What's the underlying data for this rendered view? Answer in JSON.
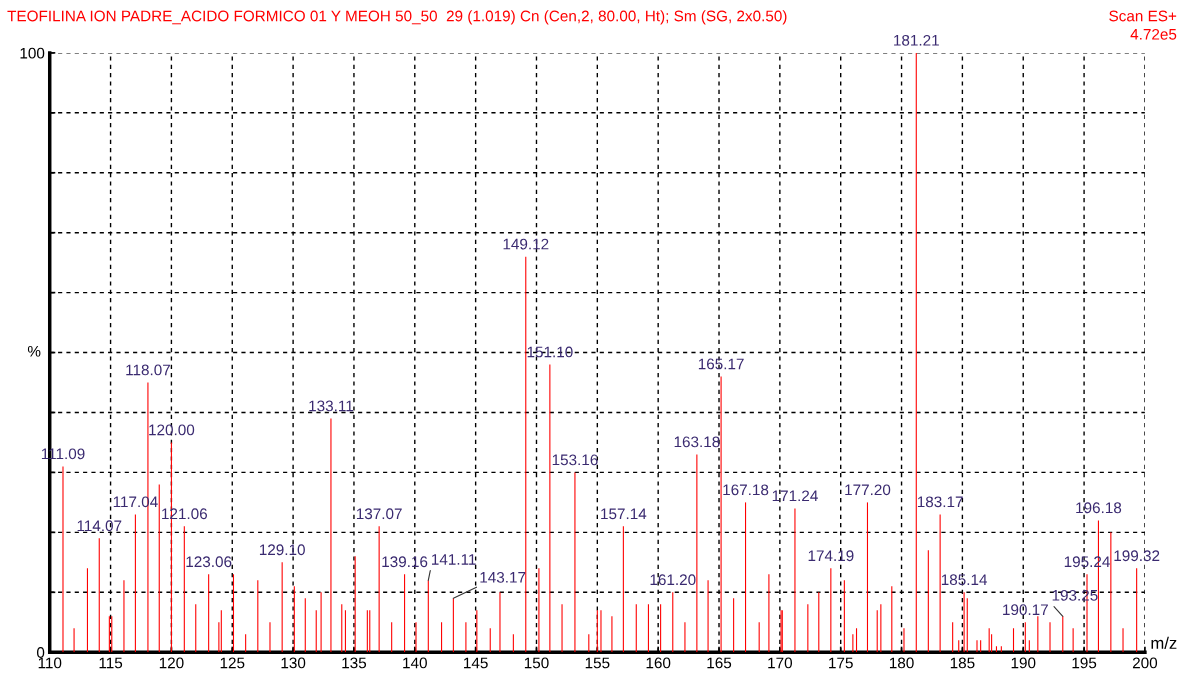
{
  "chart_data": {
    "type": "bar",
    "title": "TEOFILINA ION PADRE_ACIDO FORMICO 01 Y MEOH 50_50  29 (1.019) Cn (Cen,2, 80.00, Ht); Sm (SG, 2x0.50)",
    "xlabel": "m/z",
    "ylabel": "%",
    "x": [
      111.09,
      112.0,
      113.1,
      114.07,
      114.9,
      115.1,
      116.1,
      117.04,
      118.07,
      119.0,
      120.0,
      121.06,
      122.0,
      123.06,
      123.9,
      124.1,
      125.1,
      126.1,
      127.1,
      128.1,
      129.1,
      130.1,
      131.0,
      131.9,
      132.3,
      133.11,
      134.0,
      134.3,
      135.1,
      136.1,
      136.3,
      137.07,
      138.1,
      139.16,
      140.1,
      141.11,
      142.2,
      143.17,
      144.2,
      145.1,
      146.2,
      147.0,
      148.1,
      149.12,
      150.2,
      151.1,
      152.1,
      153.16,
      154.3,
      155.0,
      155.3,
      156.2,
      157.14,
      158.2,
      159.2,
      160.2,
      161.2,
      162.2,
      163.18,
      164.1,
      165.17,
      166.2,
      167.18,
      168.3,
      169.1,
      170.1,
      170.2,
      171.24,
      172.3,
      173.2,
      174.19,
      175.3,
      176.0,
      176.3,
      177.2,
      178.0,
      178.3,
      179.2,
      180.2,
      181.21,
      182.2,
      183.17,
      184.2,
      184.7,
      185.14,
      185.4,
      186.2,
      186.5,
      187.2,
      187.4,
      187.8,
      188.2,
      189.2,
      190.17,
      190.5,
      191.2,
      192.2,
      193.25,
      194.1,
      195.24,
      196.18,
      197.2,
      198.2,
      199.32
    ],
    "series": [
      {
        "color": "#ff0000",
        "values": [
          31,
          4,
          14,
          19,
          6,
          6,
          12,
          23,
          45,
          28,
          35,
          21,
          8,
          13,
          5,
          7,
          13,
          3,
          12,
          5,
          15,
          11,
          9,
          7,
          10,
          39,
          8,
          7,
          16,
          7,
          7,
          21,
          5,
          13,
          5,
          12,
          5,
          9,
          5,
          7,
          4,
          10,
          3,
          66,
          14,
          48,
          8,
          30,
          3,
          7,
          7,
          6,
          21,
          8,
          8,
          8,
          10,
          5,
          33,
          12,
          46,
          9,
          25,
          5,
          13,
          7,
          7,
          24,
          8,
          10,
          14,
          12,
          3,
          4,
          25,
          7,
          8,
          11,
          4,
          100,
          17,
          23,
          5,
          2,
          10,
          9,
          2,
          2,
          4,
          3,
          1,
          1,
          4,
          5,
          2,
          6,
          5,
          6,
          4,
          13,
          22,
          20,
          4,
          14
        ]
      }
    ],
    "xlim": [
      110,
      200
    ],
    "xticks": [
      110,
      115,
      120,
      125,
      130,
      135,
      140,
      145,
      150,
      155,
      160,
      165,
      170,
      175,
      180,
      185,
      190,
      195,
      200
    ],
    "ylim": [
      0,
      100
    ],
    "yticks": [
      0,
      {
        "value": 10,
        "label": null
      },
      {
        "value": 20,
        "label": null
      },
      {
        "value": 30,
        "label": null
      },
      {
        "value": 40,
        "label": null
      },
      {
        "value": 50,
        "label": null
      },
      {
        "value": 60,
        "label": null
      },
      {
        "value": 70,
        "label": null
      },
      {
        "value": 80,
        "label": null
      },
      {
        "value": 90,
        "label": null
      },
      100
    ],
    "grid": true,
    "legend": false,
    "annotations": [
      "Scan ES+",
      "4.72e5",
      {
        "text": "111.09",
        "x": 111.09,
        "y": 31
      },
      {
        "text": "114.07",
        "x": 114.07,
        "y": 19
      },
      {
        "text": "117.04",
        "x": 117.04,
        "y": 23
      },
      {
        "text": "118.07",
        "x": 118.07,
        "y": 45
      },
      {
        "text": "120.00",
        "x": 120.0,
        "y": 35
      },
      {
        "text": "121.06",
        "x": 121.06,
        "y": 21
      },
      {
        "text": "123.06",
        "x": 123.06,
        "y": 13
      },
      {
        "text": "129.10",
        "x": 129.1,
        "y": 15
      },
      {
        "text": "133.11",
        "x": 133.11,
        "y": 39
      },
      {
        "text": "137.07",
        "x": 137.07,
        "y": 21
      },
      {
        "text": "139.16",
        "x": 139.16,
        "y": 13
      },
      {
        "text": "141.11",
        "x": 141.11,
        "y": 12
      },
      {
        "text": "143.17",
        "x": 143.17,
        "y": 9
      },
      {
        "text": "149.12",
        "x": 149.12,
        "y": 66
      },
      {
        "text": "151.10",
        "x": 151.1,
        "y": 48
      },
      {
        "text": "153.16",
        "x": 153.16,
        "y": 30
      },
      {
        "text": "157.14",
        "x": 157.14,
        "y": 21
      },
      {
        "text": "161.20",
        "x": 161.2,
        "y": 10
      },
      {
        "text": "163.18",
        "x": 163.18,
        "y": 33
      },
      {
        "text": "165.17",
        "x": 165.17,
        "y": 46
      },
      {
        "text": "167.18",
        "x": 167.18,
        "y": 25
      },
      {
        "text": "171.24",
        "x": 171.24,
        "y": 24
      },
      {
        "text": "174.19",
        "x": 174.19,
        "y": 14
      },
      {
        "text": "177.20",
        "x": 177.2,
        "y": 25
      },
      {
        "text": "181.21",
        "x": 181.21,
        "y": 100
      },
      {
        "text": "183.17",
        "x": 183.17,
        "y": 23
      },
      {
        "text": "185.14",
        "x": 185.14,
        "y": 10
      },
      {
        "text": "190.17",
        "x": 190.17,
        "y": 5
      },
      {
        "text": "193.25",
        "x": 193.25,
        "y": 6
      },
      {
        "text": "195.24",
        "x": 195.24,
        "y": 13
      },
      {
        "text": "196.18",
        "x": 196.18,
        "y": 22
      },
      {
        "text": "199.32",
        "x": 199.32,
        "y": 14
      }
    ]
  }
}
